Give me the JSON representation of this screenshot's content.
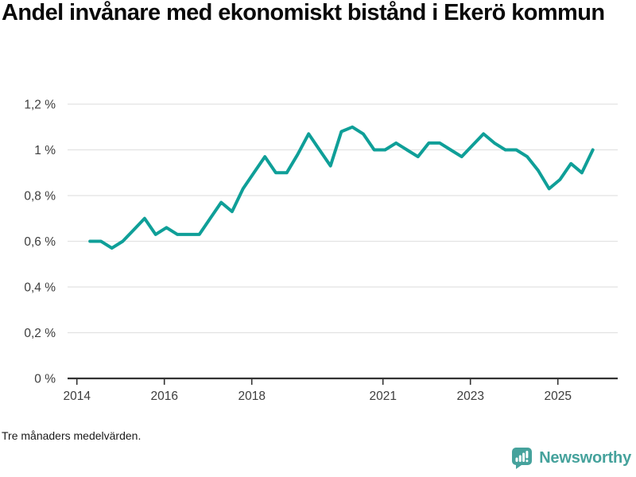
{
  "title": "Andel invånare med ekonomiskt bistånd i Ekerö kommun",
  "footer": {
    "note": "Tre månaders medelvärden."
  },
  "brand": {
    "name": "Newsworthy",
    "color": "#45a29c",
    "icon": "newsworthy-bars-speech-bubble-icon"
  },
  "colors": {
    "line": "#0f9f98",
    "grid": "#e2e2e2",
    "axis": "#333333",
    "tick_label": "#3d3d3d",
    "title": "#0a0a0a"
  },
  "chart_data": {
    "type": "line",
    "title": "Andel invånare med ekonomiskt bistånd i Ekerö kommun",
    "subtitle": "",
    "note": "Tre månaders medelvärden.",
    "xlabel": "",
    "ylabel": "",
    "unit": "%",
    "grid": true,
    "legend": "none",
    "xlim": [
      2013.79,
      2026.35
    ],
    "ylim": [
      0,
      1.25
    ],
    "y_ticks": [
      {
        "value": 1.2,
        "label": "1,2 %"
      },
      {
        "value": 1.0,
        "label": "1 %"
      },
      {
        "value": 0.8,
        "label": "0,8 %"
      },
      {
        "value": 0.6,
        "label": "0,6 %"
      },
      {
        "value": 0.4,
        "label": "0,4 %"
      },
      {
        "value": 0.2,
        "label": "0,2 %"
      },
      {
        "value": 0.0,
        "label": "0 %"
      }
    ],
    "x_ticks": [
      {
        "value": 2014,
        "label": "2014"
      },
      {
        "value": 2016,
        "label": "2016"
      },
      {
        "value": 2018,
        "label": "2018"
      },
      {
        "value": 2021,
        "label": "2021"
      },
      {
        "value": 2023,
        "label": "2023"
      },
      {
        "value": 2025,
        "label": "2025"
      }
    ],
    "series": [
      {
        "name": "Andel invånare med ekonomiskt bistånd",
        "points": [
          [
            2014.3,
            0.6
          ],
          [
            2014.55,
            0.6
          ],
          [
            2014.8,
            0.57
          ],
          [
            2015.05,
            0.6
          ],
          [
            2015.3,
            0.65
          ],
          [
            2015.55,
            0.7
          ],
          [
            2015.8,
            0.63
          ],
          [
            2016.05,
            0.66
          ],
          [
            2016.3,
            0.63
          ],
          [
            2016.55,
            0.63
          ],
          [
            2016.8,
            0.63
          ],
          [
            2017.05,
            0.7
          ],
          [
            2017.3,
            0.77
          ],
          [
            2017.55,
            0.73
          ],
          [
            2017.8,
            0.83
          ],
          [
            2018.05,
            0.9
          ],
          [
            2018.3,
            0.97
          ],
          [
            2018.55,
            0.9
          ],
          [
            2018.8,
            0.9
          ],
          [
            2019.05,
            0.98
          ],
          [
            2019.3,
            1.07
          ],
          [
            2019.55,
            1.0
          ],
          [
            2019.8,
            0.93
          ],
          [
            2020.05,
            1.08
          ],
          [
            2020.3,
            1.1
          ],
          [
            2020.55,
            1.07
          ],
          [
            2020.8,
            1.0
          ],
          [
            2021.05,
            1.0
          ],
          [
            2021.3,
            1.03
          ],
          [
            2021.55,
            1.0
          ],
          [
            2021.8,
            0.97
          ],
          [
            2022.05,
            1.03
          ],
          [
            2022.3,
            1.03
          ],
          [
            2022.55,
            1.0
          ],
          [
            2022.8,
            0.97
          ],
          [
            2023.05,
            1.02
          ],
          [
            2023.3,
            1.07
          ],
          [
            2023.55,
            1.03
          ],
          [
            2023.8,
            1.0
          ],
          [
            2024.05,
            1.0
          ],
          [
            2024.3,
            0.97
          ],
          [
            2024.55,
            0.91
          ],
          [
            2024.8,
            0.83
          ],
          [
            2025.05,
            0.87
          ],
          [
            2025.3,
            0.94
          ],
          [
            2025.55,
            0.9
          ],
          [
            2025.8,
            1.0
          ]
        ]
      }
    ]
  }
}
